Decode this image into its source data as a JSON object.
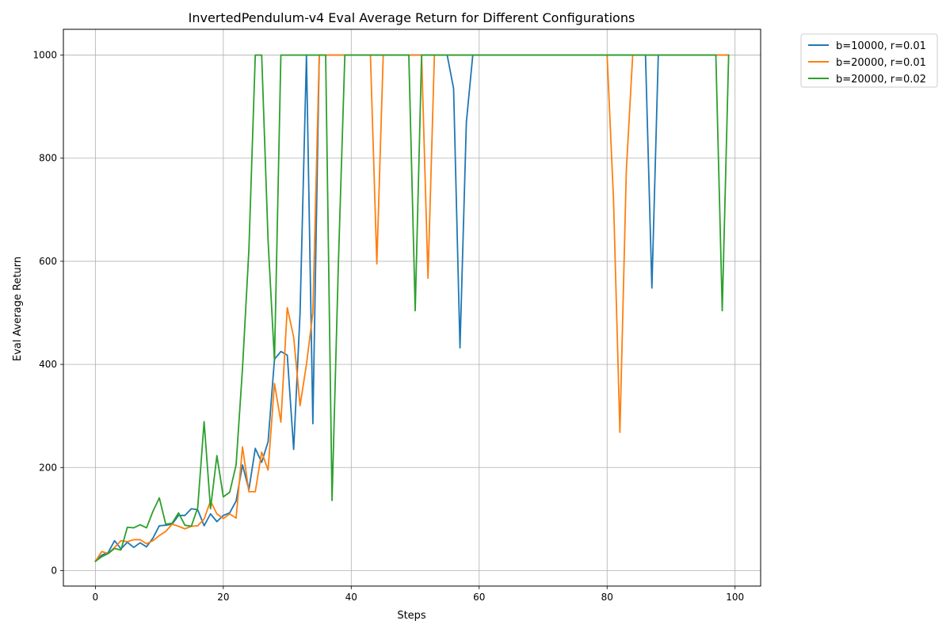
{
  "chart_data": {
    "type": "line",
    "title": "InvertedPendulum-v4 Eval Average Return for Different Configurations",
    "xlabel": "Steps",
    "ylabel": "Eval Average Return",
    "xlim": [
      -5,
      104
    ],
    "ylim": [
      -30,
      1050
    ],
    "xticks": [
      0,
      20,
      40,
      60,
      80,
      100
    ],
    "yticks": [
      0,
      200,
      400,
      600,
      800,
      1000
    ],
    "grid": true,
    "legend_position": "outside-top-right",
    "series": [
      {
        "name": "b=10000, r=0.01",
        "color": "#1f77b4",
        "x": [
          0,
          1,
          2,
          3,
          4,
          5,
          6,
          7,
          8,
          9,
          10,
          11,
          12,
          13,
          14,
          15,
          16,
          17,
          18,
          19,
          20,
          21,
          22,
          23,
          24,
          25,
          26,
          27,
          28,
          29,
          30,
          31,
          32,
          33,
          34,
          35,
          36,
          37,
          38,
          39,
          40,
          41,
          42,
          43,
          44,
          45,
          46,
          47,
          48,
          49,
          50,
          51,
          52,
          53,
          54,
          55,
          56,
          57,
          58,
          59,
          60,
          61,
          62,
          63,
          64,
          65,
          66,
          67,
          68,
          69,
          70,
          71,
          72,
          73,
          74,
          75,
          76,
          77,
          78,
          79,
          80,
          81,
          82,
          83,
          84,
          85,
          86,
          87,
          88,
          89,
          90,
          91,
          92,
          93,
          94,
          95,
          96,
          97,
          98,
          99
        ],
        "values": [
          18,
          30,
          35,
          58,
          42,
          55,
          45,
          54,
          46,
          63,
          87,
          88,
          90,
          107,
          107,
          120,
          118,
          87,
          110,
          95,
          107,
          112,
          135,
          205,
          157,
          237,
          210,
          250,
          410,
          425,
          418,
          235,
          500,
          1000,
          285,
          1000,
          1000,
          1000,
          1000,
          1000,
          1000,
          1000,
          1000,
          1000,
          1000,
          1000,
          1000,
          1000,
          1000,
          1000,
          1000,
          1000,
          1000,
          1000,
          1000,
          1000,
          935,
          432,
          870,
          1000,
          1000,
          1000,
          1000,
          1000,
          1000,
          1000,
          1000,
          1000,
          1000,
          1000,
          1000,
          1000,
          1000,
          1000,
          1000,
          1000,
          1000,
          1000,
          1000,
          1000,
          1000,
          1000,
          1000,
          1000,
          1000,
          1000,
          1000,
          548,
          1000,
          1000,
          1000,
          1000,
          1000,
          1000,
          1000,
          1000,
          1000,
          1000,
          1000,
          1000
        ]
      },
      {
        "name": "b=20000, r=0.01",
        "color": "#ff7f0e",
        "x": [
          0,
          1,
          2,
          3,
          4,
          5,
          6,
          7,
          8,
          9,
          10,
          11,
          12,
          13,
          14,
          15,
          16,
          17,
          18,
          19,
          20,
          21,
          22,
          23,
          24,
          25,
          26,
          27,
          28,
          29,
          30,
          31,
          32,
          33,
          34,
          35,
          36,
          37,
          38,
          39,
          40,
          41,
          42,
          43,
          44,
          45,
          46,
          47,
          48,
          49,
          50,
          51,
          52,
          53,
          54,
          55,
          56,
          57,
          58,
          59,
          60,
          61,
          62,
          63,
          64,
          65,
          66,
          67,
          68,
          69,
          70,
          71,
          72,
          73,
          74,
          75,
          76,
          77,
          78,
          79,
          80,
          81,
          82,
          83,
          84,
          85,
          86,
          87,
          88,
          89,
          90,
          91,
          92,
          93,
          94,
          95,
          96,
          97,
          98,
          99
        ],
        "values": [
          18,
          37,
          33,
          45,
          58,
          56,
          60,
          60,
          52,
          58,
          68,
          76,
          90,
          86,
          81,
          86,
          87,
          100,
          135,
          110,
          101,
          110,
          102,
          240,
          153,
          153,
          230,
          195,
          363,
          288,
          510,
          453,
          320,
          400,
          500,
          1000,
          1000,
          1000,
          1000,
          1000,
          1000,
          1000,
          1000,
          1000,
          595,
          1000,
          1000,
          1000,
          1000,
          1000,
          1000,
          1000,
          567,
          1000,
          1000,
          1000,
          1000,
          1000,
          1000,
          1000,
          1000,
          1000,
          1000,
          1000,
          1000,
          1000,
          1000,
          1000,
          1000,
          1000,
          1000,
          1000,
          1000,
          1000,
          1000,
          1000,
          1000,
          1000,
          1000,
          1000,
          1000,
          720,
          268,
          775,
          1000,
          1000,
          1000,
          1000,
          1000,
          1000,
          1000,
          1000,
          1000,
          1000,
          1000,
          1000,
          1000,
          1000,
          1000,
          1000
        ]
      },
      {
        "name": "b=20000, r=0.02",
        "color": "#2ca02c",
        "x": [
          0,
          1,
          2,
          3,
          4,
          5,
          6,
          7,
          8,
          9,
          10,
          11,
          12,
          13,
          14,
          15,
          16,
          17,
          18,
          19,
          20,
          21,
          22,
          23,
          24,
          25,
          26,
          27,
          28,
          29,
          30,
          31,
          32,
          33,
          34,
          35,
          36,
          37,
          38,
          39,
          40,
          41,
          42,
          43,
          44,
          45,
          46,
          47,
          48,
          49,
          50,
          51,
          52,
          53,
          54,
          55,
          56,
          57,
          58,
          59,
          60,
          61,
          62,
          63,
          64,
          65,
          66,
          67,
          68,
          69,
          70,
          71,
          72,
          73,
          74,
          75,
          76,
          77,
          78,
          79,
          80,
          81,
          82,
          83,
          84,
          85,
          86,
          87,
          88,
          89,
          90,
          91,
          92,
          93,
          94,
          95,
          96,
          97,
          98,
          99
        ],
        "values": [
          18,
          27,
          33,
          43,
          40,
          84,
          83,
          89,
          83,
          115,
          141,
          90,
          92,
          112,
          88,
          86,
          122,
          289,
          120,
          223,
          143,
          152,
          205,
          392,
          622,
          1000,
          1000,
          640,
          407,
          1000,
          1000,
          1000,
          1000,
          1000,
          1000,
          1000,
          1000,
          136,
          600,
          1000,
          1000,
          1000,
          1000,
          1000,
          1000,
          1000,
          1000,
          1000,
          1000,
          1000,
          504,
          1000,
          1000,
          1000,
          1000,
          1000,
          1000,
          1000,
          1000,
          1000,
          1000,
          1000,
          1000,
          1000,
          1000,
          1000,
          1000,
          1000,
          1000,
          1000,
          1000,
          1000,
          1000,
          1000,
          1000,
          1000,
          1000,
          1000,
          1000,
          1000,
          1000,
          1000,
          1000,
          1000,
          1000,
          1000,
          1000,
          1000,
          1000,
          1000,
          1000,
          1000,
          1000,
          1000,
          1000,
          1000,
          1000,
          1000,
          504,
          1000
        ]
      }
    ]
  }
}
